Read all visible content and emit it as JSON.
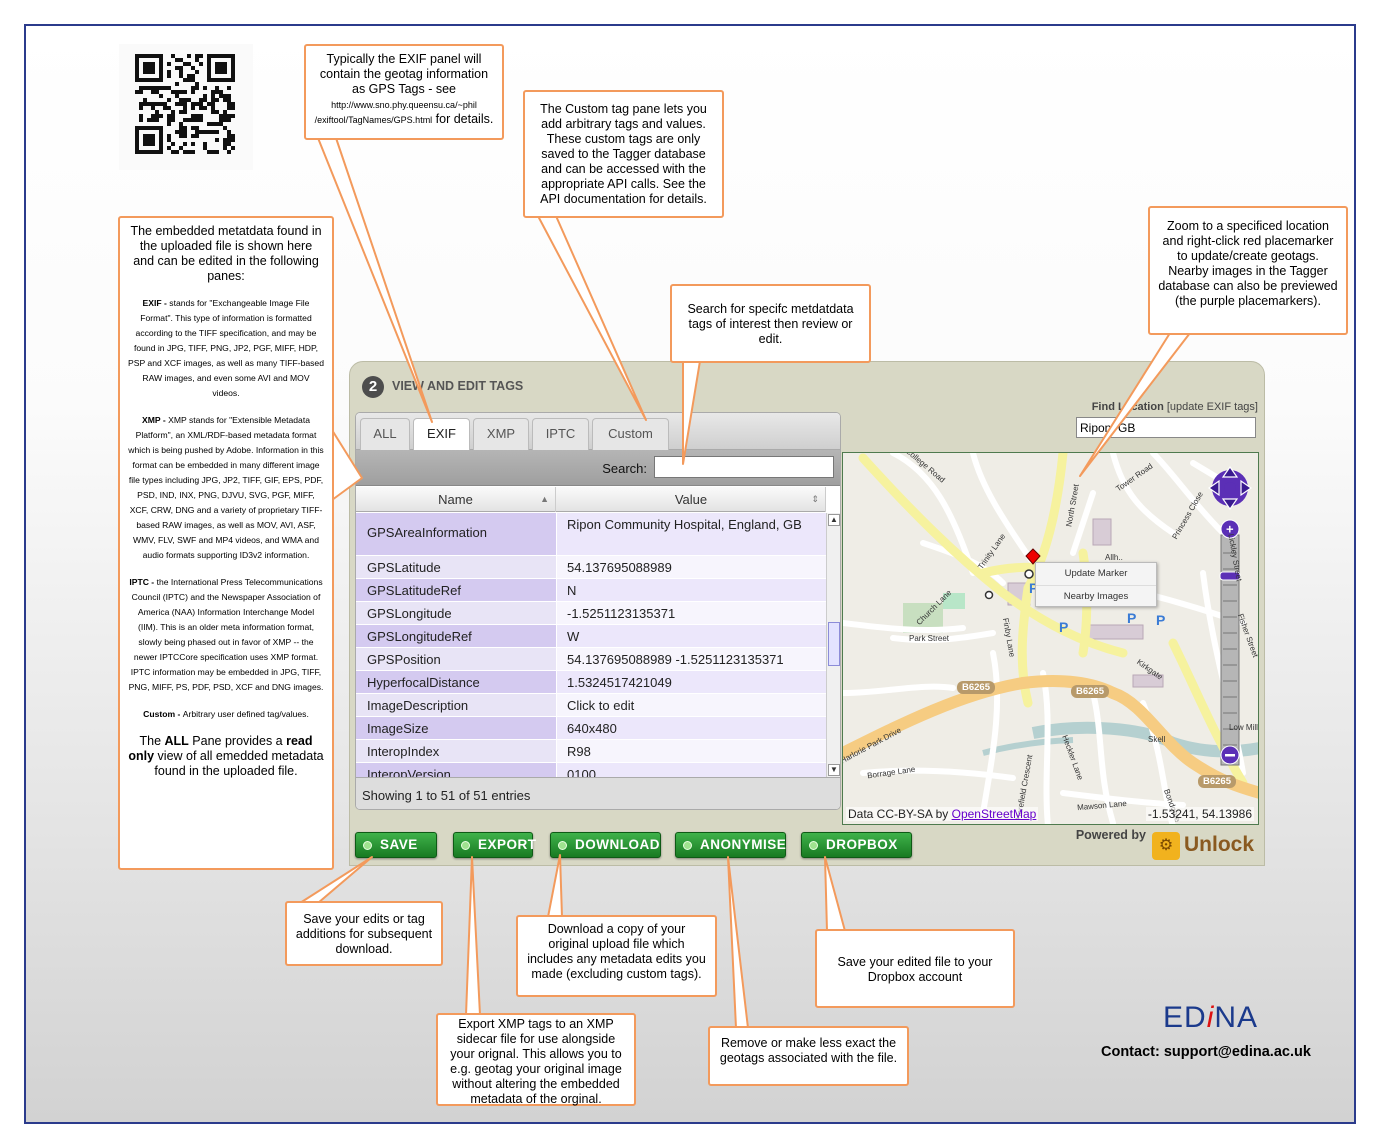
{
  "callouts": {
    "exif_panel": {
      "text": "Typically the EXIF panel will contain the geotag information as GPS Tags - see",
      "link": "http://www.sno.phy.queensu.ca/~phil /exiftool/TagNames/GPS.html",
      "tail": "for details."
    },
    "custom_pane": "The Custom tag pane lets you add arbitrary tags and values. These custom tags are only saved to the Tagger database and can be accessed with the appropriate API calls. See the API documentation for details.",
    "search": "Search for specifc metdatdata tags of interest then review or edit.",
    "zoom": "Zoom to a specificed location and right-click red placemarker to update/create geotags. Nearby images in the Tagger database can also be previewed (the purple placemarkers).",
    "save": "Save your edits or tag additions for subsequent download.",
    "export": "Export XMP tags to an XMP sidecar file for use alongside your orignal. This allows you to e.g. geotag your original image without altering the embedded metadata of the orginal.",
    "download": "Download a copy of your original upload file which includes any metadata edits you made (excluding custom tags).",
    "anonymise": "Remove or make less exact the geotags associated with the file.",
    "dropbox": "Save your edited file to your Dropbox account"
  },
  "left_panel": {
    "intro": "The embedded metatdata found in the uploaded file is shown here and can be edited in the following panes:",
    "exif_head": "EXIF - ",
    "exif_text": "stands for \"Exchangeable Image File Format\". This type of information is formatted according to the TIFF specification, and may be found in JPG, TIFF, PNG, JP2, PGF, MIFF, HDP, PSP and XCF images, as well as many TIFF-based RAW images, and even some AVI and MOV videos.",
    "xmp_head": "XMP - ",
    "xmp_text": "XMP stands for \"Extensible Metadata Platform\", an XML/RDF-based metadata format which is being pushed by Adobe. Information in this format can be embedded in many different image file types including JPG, JP2, TIFF, GIF, EPS, PDF, PSD, IND, INX, PNG, DJVU, SVG, PGF, MIFF, XCF, CRW, DNG and a variety of proprietary TIFF-based RAW images, as well as MOV, AVI, ASF, WMV, FLV, SWF and MP4 videos, and WMA and audio formats supporting ID3v2 information.",
    "iptc_head": "IPTC - ",
    "iptc_text": "the International Press Telecommunications Council (IPTC) and the Newspaper Association of America (NAA) Information Interchange Model (IIM). This is an older meta information format, slowly being phased out in favor of XMP -- the newer IPTCCore specification uses XMP format. IPTC information may be embedded in JPG, TIFF, PNG, MIFF, PS, PDF, PSD, XCF and DNG images.",
    "custom_head": "Custom - ",
    "custom_text": "Arbitrary user defined tag/values.",
    "all_pre": "The ",
    "all_bold": "ALL",
    "all_mid": " Pane provides a ",
    "all_bold2": "read only",
    "all_post": " view of all emedded metadata found in the uploaded file."
  },
  "app": {
    "step": "2",
    "title": "VIEW AND EDIT TAGS",
    "tabs": [
      "ALL",
      "EXIF",
      "XMP",
      "IPTC",
      "Custom"
    ],
    "active_tab": "EXIF",
    "search_label": "Search:",
    "search_value": "",
    "columns": [
      "Name",
      "Value"
    ],
    "rows": [
      {
        "name": "GPSAreaInformation",
        "value": "Ripon Community Hospital, England, GB"
      },
      {
        "name": "GPSLatitude",
        "value": "54.137695088989"
      },
      {
        "name": "GPSLatitudeRef",
        "value": "N"
      },
      {
        "name": "GPSLongitude",
        "value": "-1.5251123135371"
      },
      {
        "name": "GPSLongitudeRef",
        "value": "W"
      },
      {
        "name": "GPSPosition",
        "value": "54.137695088989 -1.5251123135371"
      },
      {
        "name": "HyperfocalDistance",
        "value": "1.5324517421049"
      },
      {
        "name": "ImageDescription",
        "value": "Click to edit"
      },
      {
        "name": "ImageSize",
        "value": "640x480"
      },
      {
        "name": "InteropIndex",
        "value": "R98"
      },
      {
        "name": "InteropVersion",
        "value": "0100"
      }
    ],
    "footer": "Showing 1 to 51 of 51 entries",
    "find_label": "Find Location",
    "find_link": "[update EXIF tags]",
    "find_value": "Ripon, GB",
    "map": {
      "attribution_prefix": "Data CC-BY-SA by ",
      "attribution_link": "OpenStreetMap",
      "coords": "-1.53241, 54.13986",
      "menu": [
        "Update Marker",
        "Nearby Images"
      ],
      "street_labels": [
        "College Road",
        "North Street",
        "Tower Road",
        "Princess Close",
        "Trinity Lane",
        "Allh..",
        "Church Lane",
        "Park Street",
        "Finby Lane",
        "Kirkgate",
        "Lickley Street",
        "Fisher Street",
        "Low Mill",
        "Borrage Lane",
        "Mawson Lane",
        "Heckler Lane",
        "Bondgate",
        "Harefield Crescent",
        "Skell",
        "Harlorie Park Drive"
      ],
      "shields": [
        "B6265",
        "B6265",
        "B6265"
      ]
    },
    "buttons": [
      "SAVE",
      "EXPORT",
      "DOWNLOAD",
      "ANONYMISE",
      "DROPBOX"
    ],
    "powered_by": "Powered by",
    "unlock": "Unlock"
  },
  "brand": {
    "logo_pre": "ED",
    "logo_i": "i",
    "logo_post": "NA",
    "contact": "Contact: support@edina.ac.uk"
  },
  "colors": {
    "frame_border": "#2b3b8c",
    "callout_border": "#f39a5c",
    "button_green": "#2a9a34",
    "row_purple": "#d4caf0",
    "edina_blue": "#1b3a8c",
    "edina_red": "#dd1111"
  }
}
